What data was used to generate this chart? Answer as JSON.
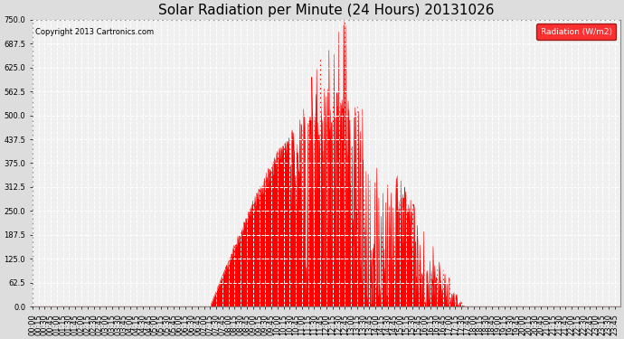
{
  "title": "Solar Radiation per Minute (24 Hours) 20131026",
  "copyright_text": "Copyright 2013 Cartronics.com",
  "legend_label": "Radiation (W/m2)",
  "ylim": [
    0.0,
    750.0
  ],
  "yticks": [
    0.0,
    62.5,
    125.0,
    187.5,
    250.0,
    312.5,
    375.0,
    437.5,
    500.0,
    562.5,
    625.0,
    687.5,
    750.0
  ],
  "background_color": "#dddddd",
  "plot_bg_color": "#f0f0f0",
  "fill_color": "#ff0000",
  "line_color": "#ff0000",
  "grid_color": "#ffffff",
  "dashed_line_color": "#ff0000",
  "title_fontsize": 11,
  "tick_fontsize": 6,
  "sunrise_hour": 7.25,
  "sunset_hour": 17.65,
  "peak_value": 748,
  "base_amplitude": 550
}
